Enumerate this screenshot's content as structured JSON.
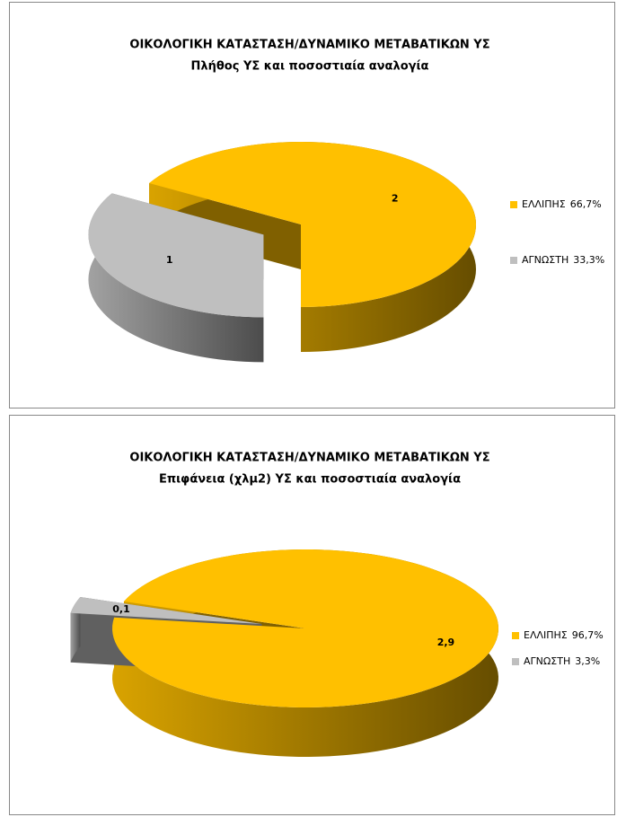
{
  "chart_data": [
    {
      "type": "pie",
      "title": "ΟΙΚΟΛΟΓΙΚΗ ΚΑΤΑΣΤΑΣΗ/ΔΥΝΑΜΙΚΟ ΜΕΤΑΒΑΤΙΚΩΝ ΥΣ",
      "subtitle": "Πλήθος ΥΣ και  ποσοστιαία αναλογία",
      "categories": [
        "ΕΛΛΙΠΗΣ",
        "ΑΓΝΩΣΤΗ"
      ],
      "values": [
        2,
        1
      ],
      "percents": [
        66.7,
        33.3
      ],
      "percent_labels": [
        "66,7%",
        "33,3%"
      ],
      "colors": [
        "#ffc000",
        "#bfbfbf"
      ],
      "legend": "right"
    },
    {
      "type": "pie",
      "title": "ΟΙΚΟΛΟΓΙΚΗ ΚΑΤΑΣΤΑΣΗ/ΔΥΝΑΜΙΚΟ ΜΕΤΑΒΑΤΙΚΩΝ ΥΣ",
      "subtitle": "Επιφάνεια (χλμ2) ΥΣ και  ποσοστιαία αναλογία",
      "categories": [
        "ΕΛΛΙΠΗΣ",
        "ΑΓΝΩΣΤΗ"
      ],
      "values": [
        2.9,
        0.1
      ],
      "value_labels": [
        "2,9",
        "0,1"
      ],
      "percents": [
        96.7,
        3.3
      ],
      "percent_labels": [
        "96,7%",
        "3,3%"
      ],
      "colors": [
        "#ffc000",
        "#bfbfbf"
      ],
      "legend": "right"
    }
  ]
}
